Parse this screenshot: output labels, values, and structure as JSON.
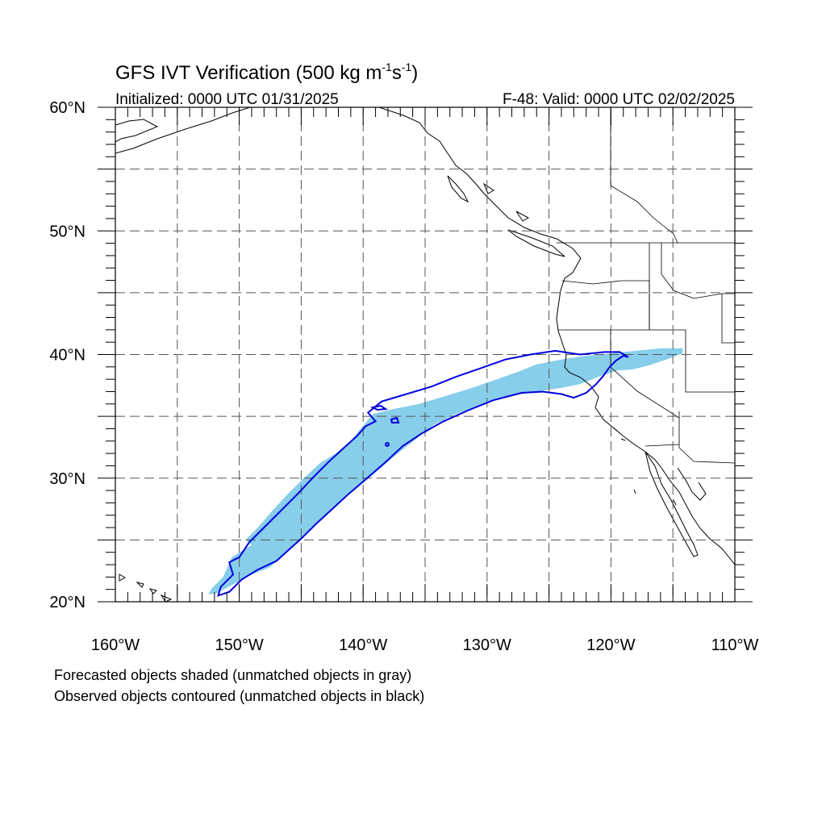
{
  "title": {
    "main": "GFS IVT Verification (500 kg m",
    "exp1": "-1",
    "mid": "s",
    "exp2": "-1",
    "close": ")"
  },
  "subtitle_left": "Initialized: 0000 UTC 01/31/2025",
  "subtitle_right": "F-48: Valid: 0000 UTC 02/02/2025",
  "axes": {
    "lon_range": [
      -160,
      -110
    ],
    "lat_range": [
      20,
      60
    ],
    "x_ticks": [
      -160,
      -150,
      -140,
      -130,
      -120,
      -110
    ],
    "x_tick_labels": [
      "160°W",
      "150°W",
      "140°W",
      "130°W",
      "120°W",
      "110°W"
    ],
    "y_ticks": [
      20,
      30,
      40,
      50,
      60
    ],
    "y_tick_labels": [
      "20°N",
      "30°N",
      "40°N",
      "50°N",
      "60°N"
    ],
    "grid": "dashed every 5 degrees"
  },
  "legend": {
    "line1": "Forecasted objects shaded (unmatched objects in gray)",
    "line2": "Observed objects contoured (unmatched objects in black)"
  },
  "colors": {
    "forecast_fill": "#87ceeb",
    "observed_contour": "#0000dd",
    "coastline": "#000000",
    "grid": "#555555"
  },
  "forecast_object": [
    [
      -152.5,
      20.6
    ],
    [
      -151.8,
      20.7
    ],
    [
      -150.5,
      21.4
    ],
    [
      -149,
      22.2
    ],
    [
      -147.5,
      22.8
    ],
    [
      -146.2,
      24.1
    ],
    [
      -145.2,
      25.0
    ],
    [
      -144.0,
      26.1
    ],
    [
      -142.8,
      27.2
    ],
    [
      -141.5,
      28.4
    ],
    [
      -140.0,
      29.6
    ],
    [
      -138.5,
      30.9
    ],
    [
      -137.2,
      32.0
    ],
    [
      -135.8,
      33.1
    ],
    [
      -134.3,
      34.3
    ],
    [
      -132.5,
      35.2
    ],
    [
      -130.5,
      35.9
    ],
    [
      -128.5,
      36.6
    ],
    [
      -126.0,
      37.0
    ],
    [
      -124.0,
      37.3
    ],
    [
      -122.5,
      37.6
    ],
    [
      -121.0,
      38.2
    ],
    [
      -119.5,
      38.7
    ],
    [
      -118.2,
      38.8
    ],
    [
      -117.0,
      39.1
    ],
    [
      -115.5,
      39.6
    ],
    [
      -114.2,
      40.1
    ],
    [
      -114.2,
      40.5
    ],
    [
      -116.0,
      40.5
    ],
    [
      -118.0,
      40.3
    ],
    [
      -120.0,
      40.1
    ],
    [
      -122.0,
      39.9
    ],
    [
      -124.0,
      39.6
    ],
    [
      -126.0,
      39.2
    ],
    [
      -127.5,
      38.6
    ],
    [
      -129.5,
      37.9
    ],
    [
      -131.5,
      37.2
    ],
    [
      -133.5,
      36.6
    ],
    [
      -135.5,
      36.0
    ],
    [
      -137.5,
      35.6
    ],
    [
      -139.2,
      35.2
    ],
    [
      -140.2,
      34.0
    ],
    [
      -141.0,
      33.0
    ],
    [
      -142.2,
      32.0
    ],
    [
      -143.5,
      31.2
    ],
    [
      -144.8,
      30.0
    ],
    [
      -146.0,
      28.8
    ],
    [
      -147.3,
      27.4
    ],
    [
      -148.5,
      26.0
    ],
    [
      -149.5,
      25.0
    ],
    [
      -149.0,
      24.6
    ],
    [
      -150.6,
      23.6
    ],
    [
      -151.3,
      22.0
    ],
    [
      -152.2,
      21.1
    ]
  ],
  "observed_object": [
    [
      -151.7,
      20.5
    ],
    [
      -150.8,
      20.8
    ],
    [
      -149.8,
      21.8
    ],
    [
      -148.5,
      22.6
    ],
    [
      -147.0,
      23.3
    ],
    [
      -146.0,
      24.2
    ],
    [
      -145.0,
      25.1
    ],
    [
      -143.8,
      26.3
    ],
    [
      -142.5,
      27.5
    ],
    [
      -141.2,
      28.7
    ],
    [
      -139.8,
      29.9
    ],
    [
      -138.3,
      31.2
    ],
    [
      -136.8,
      32.6
    ],
    [
      -135.3,
      33.6
    ],
    [
      -133.5,
      34.6
    ],
    [
      -131.5,
      35.5
    ],
    [
      -129.5,
      36.3
    ],
    [
      -127.2,
      36.9
    ],
    [
      -125.5,
      37.0
    ],
    [
      -124.0,
      36.8
    ],
    [
      -123.0,
      36.5
    ],
    [
      -122.0,
      36.9
    ],
    [
      -121.2,
      37.6
    ],
    [
      -120.6,
      38.3
    ],
    [
      -120.1,
      39.0
    ],
    [
      -119.6,
      39.5
    ],
    [
      -119.0,
      39.9
    ],
    [
      -118.6,
      39.8
    ],
    [
      -119.3,
      40.2
    ],
    [
      -120.5,
      40.2
    ],
    [
      -122.5,
      40.0
    ],
    [
      -124.5,
      40.3
    ],
    [
      -126.5,
      40.0
    ],
    [
      -128.5,
      39.6
    ],
    [
      -130.5,
      38.9
    ],
    [
      -132.5,
      38.2
    ],
    [
      -134.5,
      37.4
    ],
    [
      -136.5,
      36.8
    ],
    [
      -138.5,
      36.2
    ],
    [
      -139.6,
      35.3
    ],
    [
      -139.0,
      34.6
    ],
    [
      -139.8,
      34.2
    ],
    [
      -140.5,
      33.4
    ],
    [
      -141.5,
      32.5
    ],
    [
      -142.8,
      31.3
    ],
    [
      -144.0,
      30.1
    ],
    [
      -145.2,
      28.8
    ],
    [
      -146.6,
      27.4
    ],
    [
      -148.0,
      26.0
    ],
    [
      -149.2,
      24.8
    ],
    [
      -150.0,
      23.6
    ],
    [
      -150.8,
      23.2
    ],
    [
      -150.5,
      22.2
    ],
    [
      -151.5,
      21.2
    ]
  ]
}
